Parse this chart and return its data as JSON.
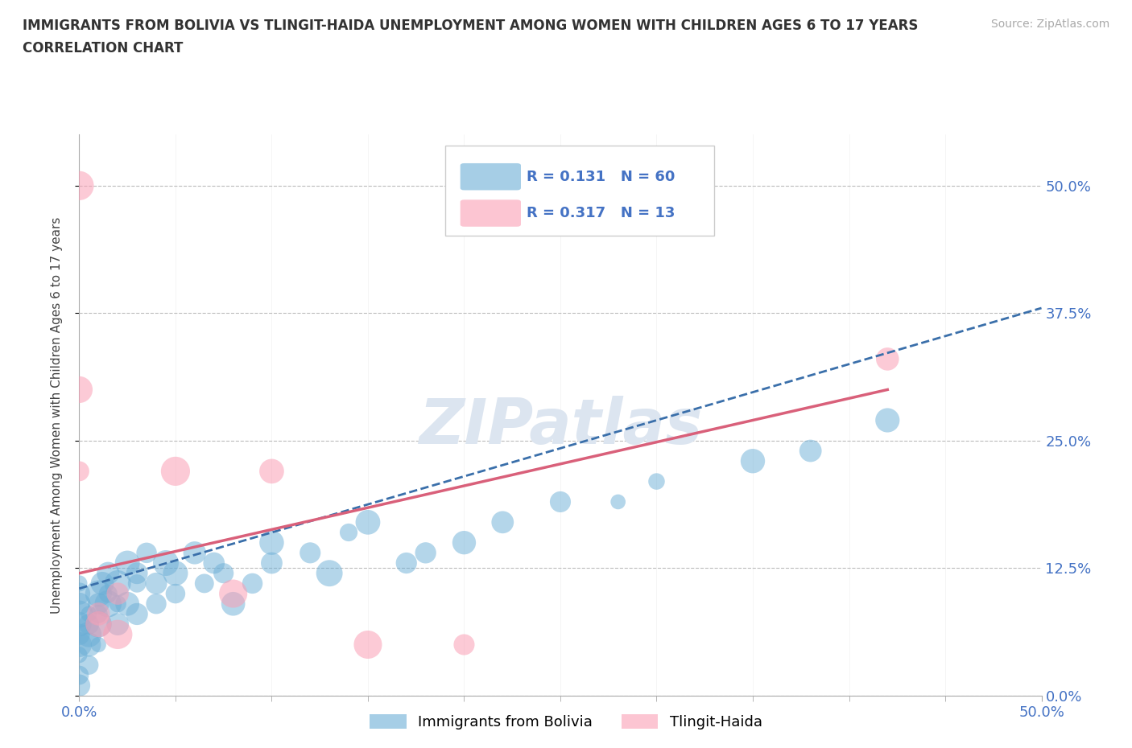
{
  "title_line1": "IMMIGRANTS FROM BOLIVIA VS TLINGIT-HAIDA UNEMPLOYMENT AMONG WOMEN WITH CHILDREN AGES 6 TO 17 YEARS",
  "title_line2": "CORRELATION CHART",
  "source_text": "Source: ZipAtlas.com",
  "ylabel": "Unemployment Among Women with Children Ages 6 to 17 years",
  "xlim": [
    0.0,
    0.5
  ],
  "ylim": [
    0.0,
    0.55
  ],
  "yticks": [
    0.0,
    0.125,
    0.25,
    0.375,
    0.5
  ],
  "ytick_labels": [
    "0.0%",
    "12.5%",
    "25.0%",
    "37.5%",
    "50.0%"
  ],
  "legend_R1": "0.131",
  "legend_N1": "60",
  "legend_R2": "0.317",
  "legend_N2": "13",
  "bolivia_color": "#6baed6",
  "tlingit_color": "#fa9fb5",
  "trend_bolivia_color": "#3a6faa",
  "trend_tlingit_color": "#d9607a",
  "watermark": "ZIPatlas",
  "watermark_color": "#dce5f0",
  "background_color": "#ffffff",
  "grid_color": "#bbbbbb",
  "bolivia_x": [
    0.0,
    0.0,
    0.0,
    0.0,
    0.0,
    0.0,
    0.0,
    0.0,
    0.0,
    0.0,
    0.005,
    0.005,
    0.005,
    0.005,
    0.005,
    0.01,
    0.01,
    0.01,
    0.01,
    0.01,
    0.012,
    0.015,
    0.015,
    0.015,
    0.02,
    0.02,
    0.02,
    0.025,
    0.025,
    0.03,
    0.03,
    0.03,
    0.035,
    0.04,
    0.04,
    0.045,
    0.05,
    0.05,
    0.06,
    0.065,
    0.07,
    0.075,
    0.08,
    0.09,
    0.1,
    0.1,
    0.12,
    0.13,
    0.14,
    0.15,
    0.17,
    0.18,
    0.2,
    0.22,
    0.25,
    0.28,
    0.3,
    0.35,
    0.38,
    0.42
  ],
  "bolivia_y": [
    0.04,
    0.05,
    0.06,
    0.07,
    0.08,
    0.09,
    0.1,
    0.11,
    0.02,
    0.01,
    0.05,
    0.06,
    0.07,
    0.08,
    0.03,
    0.07,
    0.08,
    0.09,
    0.1,
    0.05,
    0.11,
    0.09,
    0.1,
    0.12,
    0.11,
    0.09,
    0.07,
    0.13,
    0.09,
    0.12,
    0.11,
    0.08,
    0.14,
    0.11,
    0.09,
    0.13,
    0.12,
    0.1,
    0.14,
    0.11,
    0.13,
    0.12,
    0.09,
    0.11,
    0.13,
    0.15,
    0.14,
    0.12,
    0.16,
    0.17,
    0.13,
    0.14,
    0.15,
    0.17,
    0.19,
    0.19,
    0.21,
    0.23,
    0.24,
    0.27
  ],
  "tlingit_x": [
    0.0,
    0.0,
    0.0,
    0.01,
    0.01,
    0.02,
    0.02,
    0.05,
    0.08,
    0.1,
    0.15,
    0.2,
    0.42
  ],
  "tlingit_y": [
    0.5,
    0.3,
    0.22,
    0.08,
    0.07,
    0.1,
    0.06,
    0.22,
    0.1,
    0.22,
    0.05,
    0.05,
    0.33
  ],
  "bolivia_trend_x": [
    0.0,
    0.5
  ],
  "bolivia_trend_y": [
    0.105,
    0.38
  ],
  "tlingit_trend_x": [
    0.0,
    0.42
  ],
  "tlingit_trend_y": [
    0.12,
    0.3
  ]
}
